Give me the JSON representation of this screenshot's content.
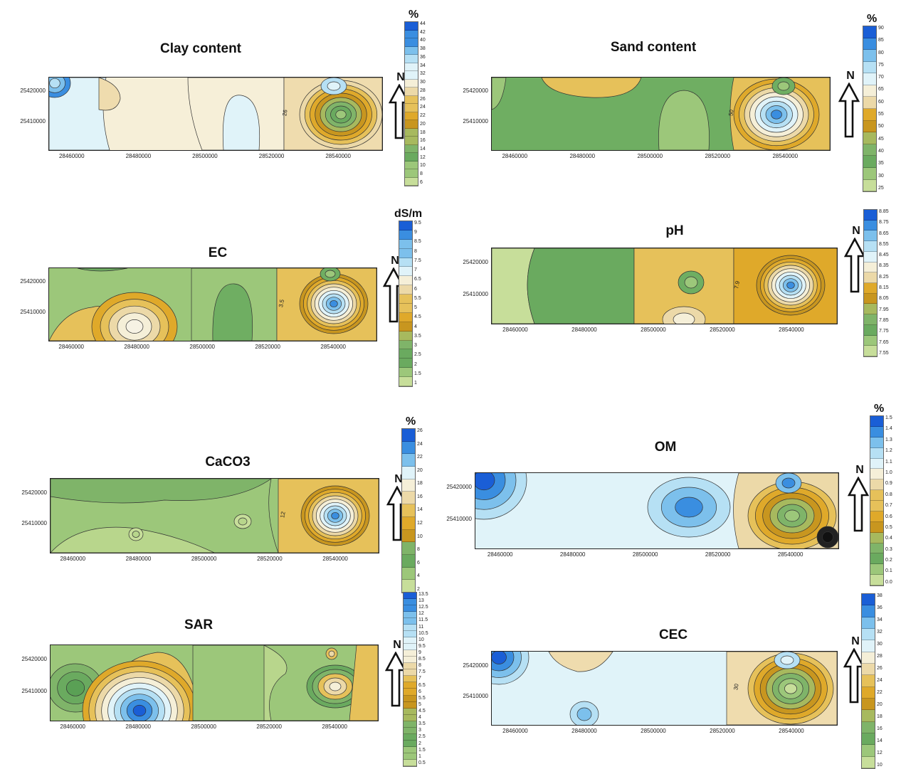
{
  "colors": {
    "low_green": "#9cc77a",
    "mid_green": "#6fae62",
    "yellow": "#e3b530",
    "dark_yellow": "#c8961f",
    "tan": "#efdcae",
    "pale": "#f6efd8",
    "light_blue": "#d5eef7",
    "blue": "#3a8ee0",
    "dark_blue": "#1a5ed6"
  },
  "panels": [
    {
      "id": "clay",
      "title": "Clay content",
      "unit": "%",
      "y_ticks": [
        "25420000",
        "25410000"
      ],
      "x_ticks": [
        "28460000",
        "28480000",
        "28500000",
        "28520000",
        "28540000"
      ],
      "contour_label": "26",
      "legend_ticks": [
        "44",
        "42",
        "40",
        "38",
        "36",
        "34",
        "32",
        "30",
        "28",
        "26",
        "24",
        "22",
        "20",
        "18",
        "16",
        "14",
        "12",
        "10",
        "8",
        "6"
      ],
      "north": "N"
    },
    {
      "id": "sand",
      "title": "Sand content",
      "unit": "%",
      "y_ticks": [
        "25420000",
        "25410000"
      ],
      "x_ticks": [
        "28460000",
        "28480000",
        "28500000",
        "28520000",
        "28540000"
      ],
      "contour_label": "50",
      "legend_ticks": [
        "90",
        "85",
        "80",
        "75",
        "70",
        "65",
        "60",
        "55",
        "50",
        "45",
        "40",
        "35",
        "30",
        "25"
      ],
      "north": "N"
    },
    {
      "id": "ec",
      "title": "EC",
      "unit": "dS/m",
      "y_ticks": [
        "25420000",
        "25410000"
      ],
      "x_ticks": [
        "28460000",
        "28480000",
        "28500000",
        "28520000",
        "28540000"
      ],
      "contour_label": "3.5",
      "legend_ticks": [
        "9.5",
        "9",
        "8.5",
        "8",
        "7.5",
        "7",
        "6.5",
        "6",
        "5.5",
        "5",
        "4.5",
        "4",
        "3.5",
        "3",
        "2.5",
        "2",
        "1.5",
        "1"
      ],
      "north": "N"
    },
    {
      "id": "ph",
      "title": "pH",
      "unit": "",
      "y_ticks": [
        "25420000",
        "25410000"
      ],
      "x_ticks": [
        "28460000",
        "28480000",
        "28500000",
        "28520000",
        "28540000"
      ],
      "contour_label": "7.9",
      "legend_ticks": [
        "8.85",
        "8.75",
        "8.65",
        "8.55",
        "8.45",
        "8.35",
        "8.25",
        "8.15",
        "8.05",
        "7.95",
        "7.85",
        "7.75",
        "7.65",
        "7.55"
      ],
      "north": "N"
    },
    {
      "id": "caco3",
      "title": "CaCO3",
      "unit": "%",
      "y_ticks": [
        "25420000",
        "25410000"
      ],
      "x_ticks": [
        "28460000",
        "28480000",
        "28500000",
        "28520000",
        "28540000"
      ],
      "contour_label": "12",
      "legend_ticks": [
        "26",
        "24",
        "22",
        "20",
        "18",
        "16",
        "14",
        "12",
        "10",
        "8",
        "6",
        "4",
        "2"
      ],
      "north": "N"
    },
    {
      "id": "om",
      "title": "OM",
      "unit": "%",
      "y_ticks": [
        "25420000",
        "25410000"
      ],
      "x_ticks": [
        "28460000",
        "28480000",
        "28500000",
        "28520000",
        "28540000"
      ],
      "contour_label": "",
      "legend_ticks": [
        "1.5",
        "1.4",
        "1.3",
        "1.2",
        "1.1",
        "1.0",
        "0.9",
        "0.8",
        "0.7",
        "0.6",
        "0.5",
        "0.4",
        "0.3",
        "0.2",
        "0.1",
        "0.0"
      ],
      "north": "N"
    },
    {
      "id": "sar",
      "title": "SAR",
      "unit": "",
      "y_ticks": [
        "25420000",
        "25410000"
      ],
      "x_ticks": [
        "28460000",
        "28480000",
        "28500000",
        "28520000",
        "28540000"
      ],
      "contour_label": "",
      "legend_ticks": [
        "13.5",
        "13",
        "12.5",
        "12",
        "11.5",
        "11",
        "10.5",
        "10",
        "9.5",
        "9",
        "8.5",
        "8",
        "7.5",
        "7",
        "6.5",
        "6",
        "5.5",
        "5",
        "4.5",
        "4",
        "3.5",
        "3",
        "2.5",
        "2",
        "1.5",
        "1",
        "0.5"
      ],
      "north": "N"
    },
    {
      "id": "cec",
      "title": "CEC",
      "unit": "",
      "y_ticks": [
        "25420000",
        "25410000"
      ],
      "x_ticks": [
        "28460000",
        "28480000",
        "28500000",
        "28520000",
        "28540000"
      ],
      "contour_label": "30",
      "legend_ticks": [
        "38",
        "36",
        "34",
        "32",
        "30",
        "28",
        "26",
        "24",
        "22",
        "20",
        "18",
        "16",
        "14",
        "12",
        "10"
      ],
      "north": "N"
    }
  ]
}
